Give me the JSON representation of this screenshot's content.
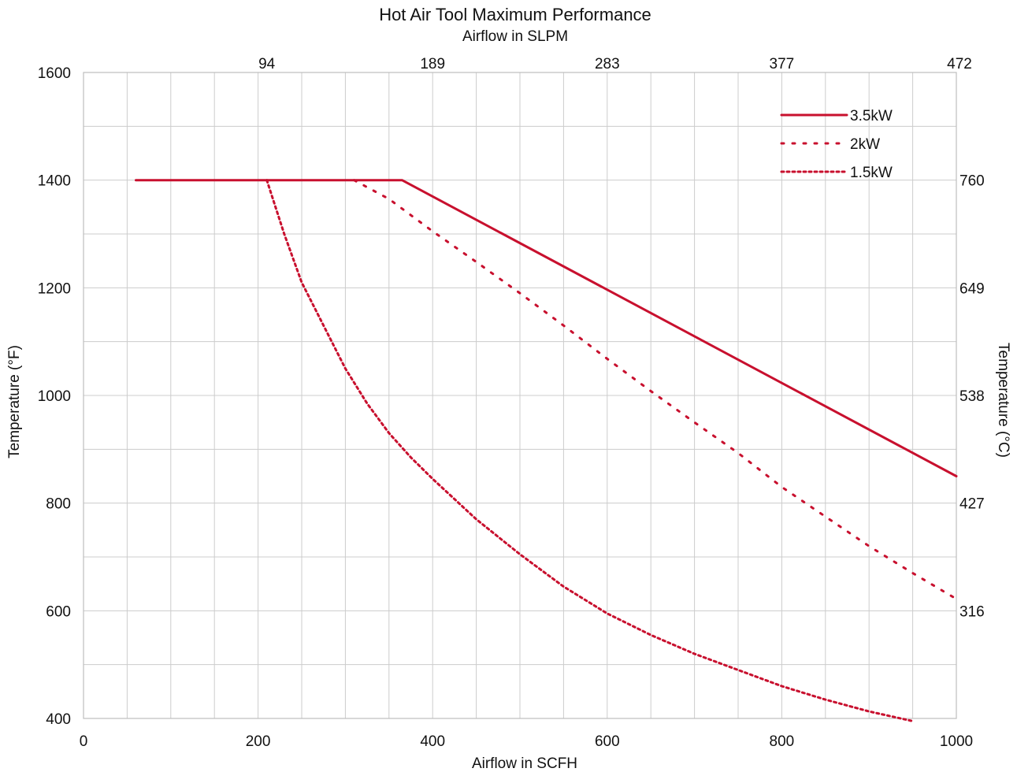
{
  "chart_data": {
    "type": "line",
    "title": "Hot Air Tool Maximum Performance",
    "subtitle": "Airflow in SLPM",
    "xlabel": "Airflow in SCFH",
    "ylabel": "Temperature (°F)",
    "y2label": "Temperature (°C)",
    "xlim": [
      0,
      1000
    ],
    "ylim": [
      400,
      1600
    ],
    "x_ticks": [
      0,
      200,
      400,
      600,
      800,
      1000
    ],
    "x_tick_labels": [
      "0",
      "200",
      "400",
      "600",
      "800",
      "1000"
    ],
    "y_ticks": [
      400,
      600,
      800,
      1000,
      1200,
      1400,
      1600
    ],
    "y_tick_labels": [
      "400",
      "600",
      "800",
      "1000",
      "1200",
      "1400",
      "1600"
    ],
    "x2_ticks": [
      {
        "x": 210,
        "label": "94"
      },
      {
        "x": 400,
        "label": "189"
      },
      {
        "x": 600,
        "label": "283"
      },
      {
        "x": 800,
        "label": "377"
      },
      {
        "x": 1000,
        "label": "472"
      }
    ],
    "y2_ticks": [
      {
        "y": 1400,
        "label": "760"
      },
      {
        "y": 1200,
        "label": "649"
      },
      {
        "y": 1000,
        "label": "538"
      },
      {
        "y": 800,
        "label": "427"
      },
      {
        "y": 600,
        "label": "316"
      }
    ],
    "grid": true,
    "legend_position": "top-right",
    "series": [
      {
        "name": "3.5kW",
        "style": "solid",
        "color": "#c8102e",
        "points": [
          [
            60,
            1400
          ],
          [
            365,
            1400
          ],
          [
            1000,
            850
          ]
        ]
      },
      {
        "name": "2kW",
        "style": "dashed",
        "color": "#c8102e",
        "points": [
          [
            310,
            1400
          ],
          [
            350,
            1365
          ],
          [
            400,
            1305
          ],
          [
            450,
            1248
          ],
          [
            500,
            1190
          ],
          [
            550,
            1130
          ],
          [
            600,
            1068
          ],
          [
            650,
            1008
          ],
          [
            700,
            950
          ],
          [
            750,
            893
          ],
          [
            800,
            830
          ],
          [
            850,
            775
          ],
          [
            900,
            720
          ],
          [
            950,
            670
          ],
          [
            1000,
            622
          ]
        ]
      },
      {
        "name": "1.5kW",
        "style": "dotted",
        "color": "#c8102e",
        "points": [
          [
            210,
            1400
          ],
          [
            230,
            1300
          ],
          [
            250,
            1210
          ],
          [
            275,
            1130
          ],
          [
            300,
            1050
          ],
          [
            325,
            985
          ],
          [
            350,
            930
          ],
          [
            375,
            885
          ],
          [
            400,
            845
          ],
          [
            450,
            770
          ],
          [
            500,
            705
          ],
          [
            550,
            645
          ],
          [
            600,
            595
          ],
          [
            650,
            555
          ],
          [
            700,
            520
          ],
          [
            750,
            490
          ],
          [
            800,
            460
          ],
          [
            850,
            435
          ],
          [
            900,
            413
          ],
          [
            950,
            395
          ]
        ]
      }
    ]
  }
}
